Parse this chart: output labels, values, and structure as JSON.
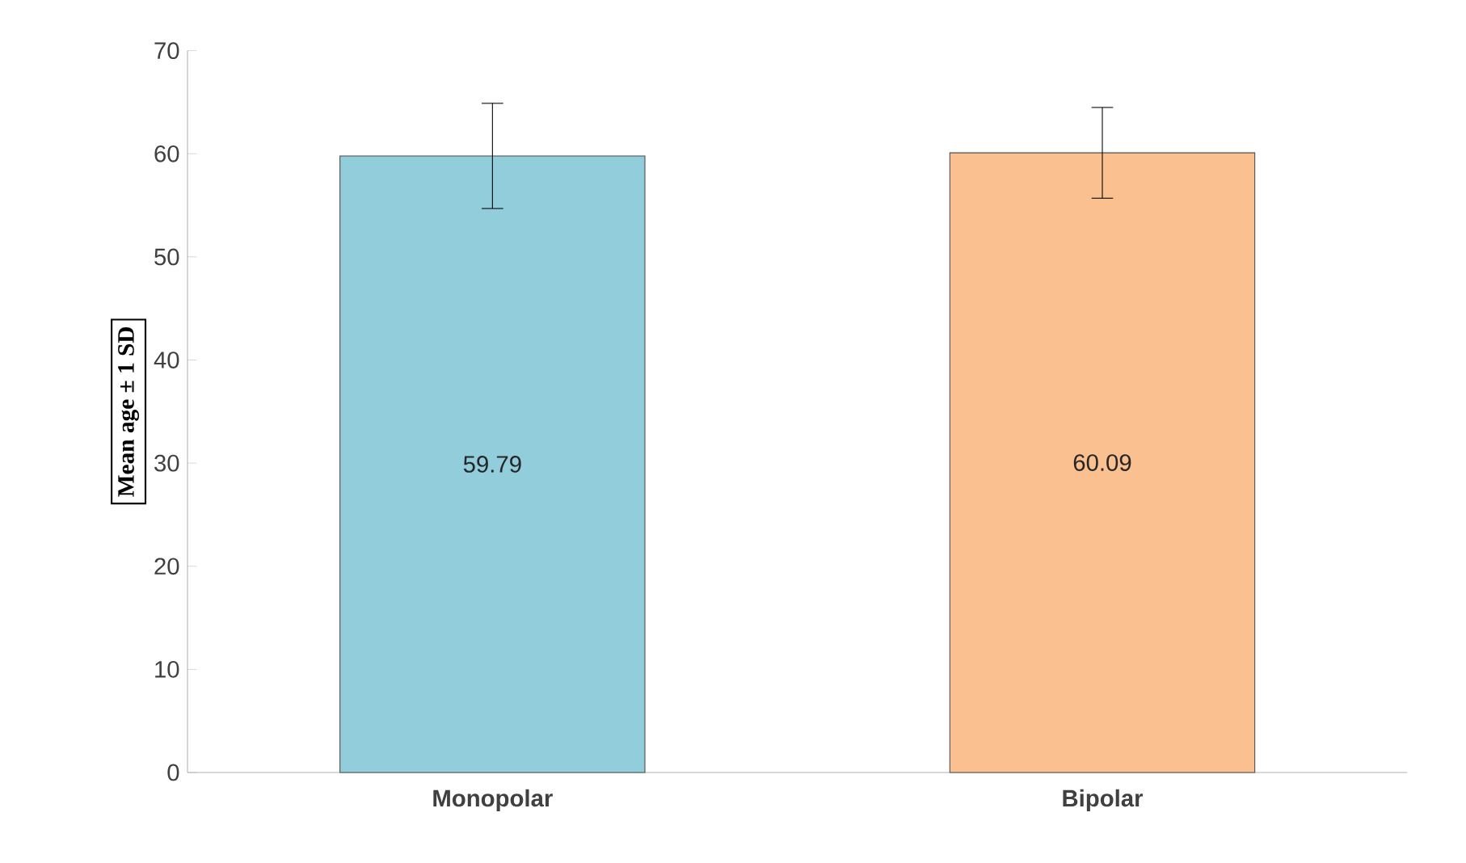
{
  "chart_data": {
    "type": "bar",
    "ylabel": "Mean age ± 1 SD",
    "categories": [
      "Monopolar",
      "Bipolar"
    ],
    "values": [
      59.79,
      60.09
    ],
    "errors": [
      5.1,
      4.4
    ],
    "colors": [
      "#92cddc",
      "#fac090"
    ],
    "ylim": [
      0,
      70
    ],
    "yticks": [
      0,
      10,
      20,
      30,
      40,
      50,
      60,
      70
    ],
    "data_labels": true,
    "grid": false
  }
}
